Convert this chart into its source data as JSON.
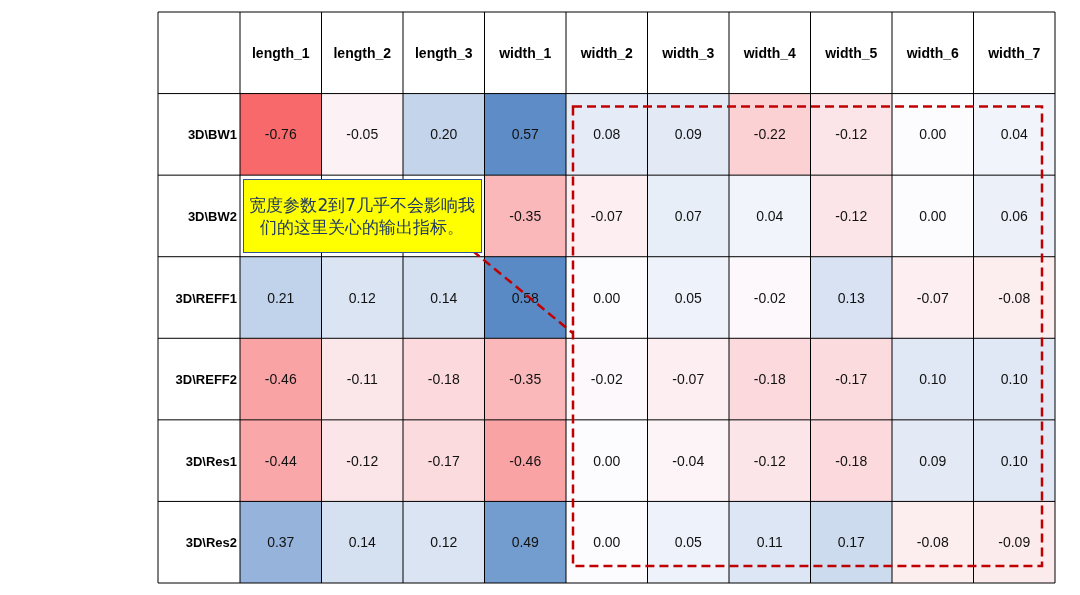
{
  "chart_data": {
    "type": "heatmap",
    "categories": [
      "length_1",
      "length_2",
      "length_3",
      "width_1",
      "width_2",
      "width_3",
      "width_4",
      "width_5",
      "width_6",
      "width_7"
    ],
    "y_categories": [
      "3D\\BW1",
      "3D\\BW2",
      "3D\\REFF1",
      "3D\\REFF2",
      "3D\\Res1",
      "3D\\Res2"
    ],
    "cells": [
      [
        -0.76,
        -0.05,
        0.2,
        0.57,
        0.08,
        0.09,
        -0.22,
        -0.12,
        0.0,
        0.04
      ],
      [
        null,
        null,
        null,
        -0.35,
        -0.07,
        0.07,
        0.04,
        -0.12,
        0.0,
        0.06
      ],
      [
        0.21,
        0.12,
        0.14,
        0.58,
        0.0,
        0.05,
        -0.02,
        0.13,
        -0.07,
        -0.08
      ],
      [
        -0.46,
        -0.11,
        -0.18,
        -0.35,
        -0.02,
        -0.07,
        -0.18,
        -0.17,
        0.1,
        0.1
      ],
      [
        -0.44,
        -0.12,
        -0.17,
        -0.46,
        0.0,
        -0.04,
        -0.12,
        -0.18,
        0.09,
        0.1
      ],
      [
        0.37,
        0.14,
        0.12,
        0.49,
        0.0,
        0.05,
        0.11,
        0.17,
        -0.08,
        -0.09
      ]
    ],
    "cell_labels": [
      [
        "-0.76",
        "-0.05",
        "0.20",
        "0.57",
        "0.08",
        "0.09",
        "-0.22",
        "-0.12",
        "0.00",
        "0.04"
      ],
      [
        null,
        null,
        null,
        "-0.35",
        "-0.07",
        "0.07",
        "0.04",
        "-0.12",
        "0.00",
        "0.06"
      ],
      [
        "0.21",
        "0.12",
        "0.14",
        "0.58",
        "0.00",
        "0.05",
        "-0.02",
        "0.13",
        "-0.07",
        "-0.08"
      ],
      [
        "-0.46",
        "-0.11",
        "-0.18",
        "-0.35",
        "-0.02",
        "-0.07",
        "-0.18",
        "-0.17",
        "0.10",
        "0.10"
      ],
      [
        "-0.44",
        "-0.12",
        "-0.17",
        "-0.46",
        "0.00",
        "-0.04",
        "-0.12",
        "-0.18",
        "0.09",
        "0.10"
      ],
      [
        "0.37",
        "0.14",
        "0.12",
        "0.49",
        "0.00",
        "0.05",
        "0.11",
        "0.17",
        "-0.08",
        "-0.09"
      ]
    ],
    "annotations": [
      "宽度参数2到7几乎不会影响我们的这里关心的输出指标。"
    ]
  }
}
